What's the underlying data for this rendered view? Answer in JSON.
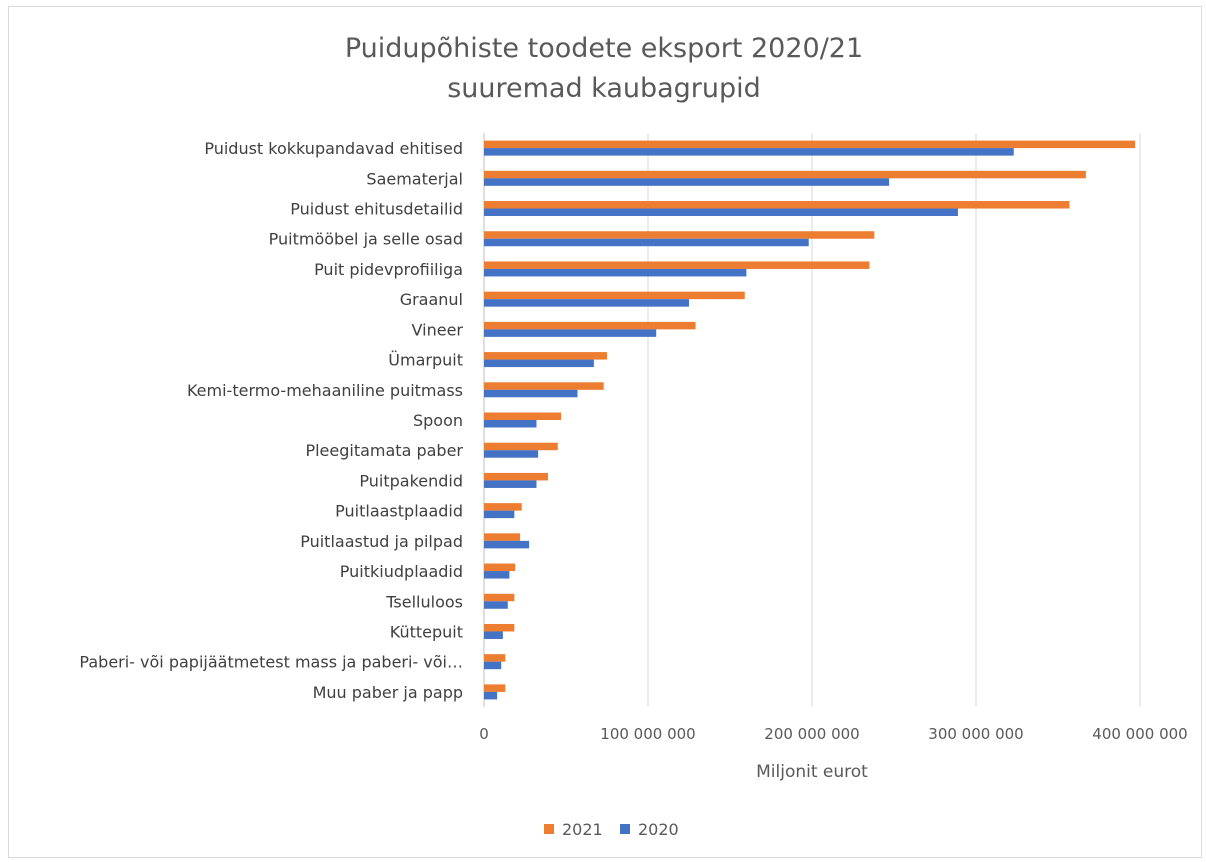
{
  "chart_data": {
    "type": "bar",
    "orientation": "horizontal",
    "title_lines": [
      "Puidupõhiste toodete eksport 2020/21",
      "suuremad kaubagrupid"
    ],
    "xlabel": "Miljonit eurot",
    "ylabel": "",
    "xlim": [
      0,
      400000000
    ],
    "x_ticks": [
      0,
      100000000,
      200000000,
      300000000,
      400000000
    ],
    "x_tick_labels": [
      "0",
      "100 000 000",
      "200 000 000",
      "300 000 000",
      "400 000 000"
    ],
    "grid": true,
    "legend_position": "bottom",
    "categories": [
      "Puidust kokkupandavad ehitised",
      "Saematerjal",
      "Puidust ehitusdetailid",
      "Puitmööbel ja selle osad",
      "Puit pidevprofiiliga",
      "Graanul",
      "Vineer",
      "Ümarpuit",
      "Kemi-termo-mehaaniline puitmass",
      "Spoon",
      "Pleegitamata paber",
      "Puitpakendid",
      "Puitlaastplaadid",
      "Puitlaastud ja pilpad",
      "Puitkiudplaadid",
      "Tselluloos",
      "Küttepuit",
      "Paberi- või papijäätmetest mass ja paberi- või…",
      "Muu paber ja papp"
    ],
    "series": [
      {
        "name": "2021",
        "color": "#ED7D31",
        "values": [
          397000000,
          367000000,
          357000000,
          238000000,
          235000000,
          159000000,
          129000000,
          75000000,
          73000000,
          47000000,
          45000000,
          39000000,
          23000000,
          22000000,
          19000000,
          18500000,
          18500000,
          13000000,
          13000000
        ]
      },
      {
        "name": "2020",
        "color": "#4472C4",
        "values": [
          323000000,
          247000000,
          289000000,
          198000000,
          160000000,
          125000000,
          105000000,
          67000000,
          57000000,
          32000000,
          33000000,
          32000000,
          18500000,
          27500000,
          15500000,
          14500000,
          11500000,
          10500000,
          8000000
        ]
      }
    ]
  }
}
